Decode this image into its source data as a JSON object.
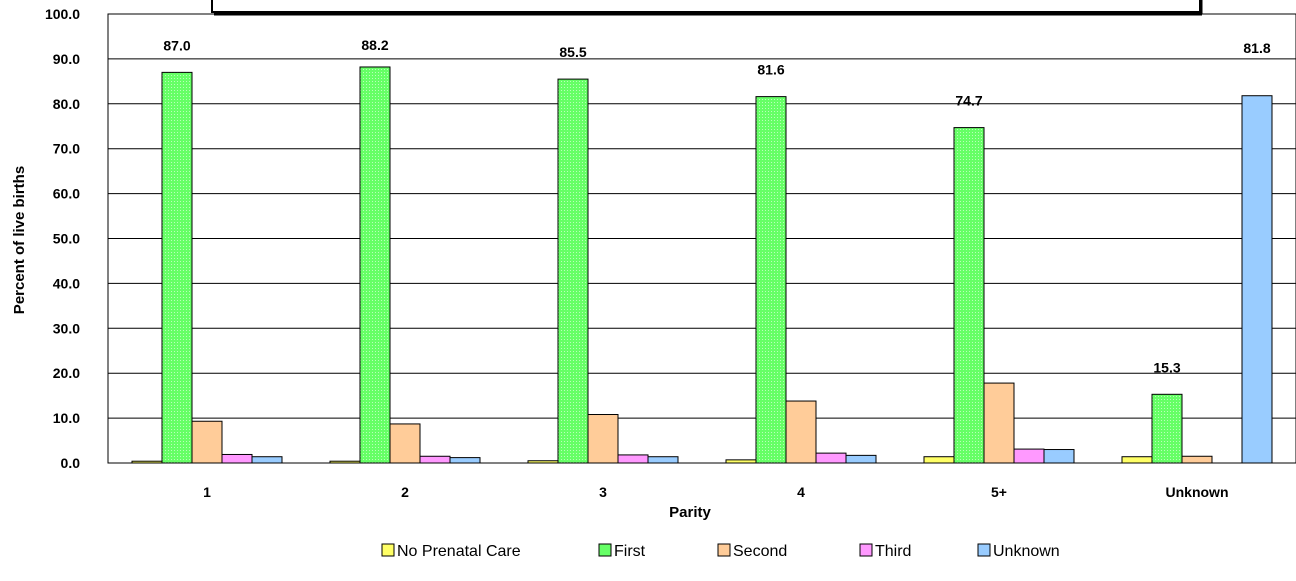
{
  "chart_data": {
    "type": "bar",
    "title": "",
    "xlabel": "Parity",
    "ylabel": "Percent of live births",
    "ylim": [
      0,
      100
    ],
    "ytick_step": 10,
    "ytick_labels": [
      "0.0",
      "10.0",
      "20.0",
      "30.0",
      "40.0",
      "50.0",
      "60.0",
      "70.0",
      "80.0",
      "90.0",
      "100.0"
    ],
    "grid": true,
    "legend_position": "bottom",
    "categories": [
      "1",
      "2",
      "3",
      "4",
      "5+",
      "Unknown"
    ],
    "series": [
      {
        "name": "No Prenatal Care",
        "color": "#ffff66",
        "values": [
          0.4,
          0.4,
          0.5,
          0.7,
          1.4,
          1.4
        ]
      },
      {
        "name": "First",
        "color": "#66ff66",
        "values": [
          87.0,
          88.2,
          85.5,
          81.6,
          74.7,
          15.3
        ]
      },
      {
        "name": "Second",
        "color": "#ffcc99",
        "values": [
          9.3,
          8.7,
          10.8,
          13.8,
          17.8,
          1.5
        ]
      },
      {
        "name": "Third",
        "color": "#ff99ff",
        "values": [
          1.9,
          1.5,
          1.8,
          2.2,
          3.1,
          0.0
        ]
      },
      {
        "name": "Unknown",
        "color": "#99ccff",
        "values": [
          1.4,
          1.2,
          1.4,
          1.7,
          3.0,
          81.8
        ]
      }
    ],
    "data_labels": [
      {
        "category": "1",
        "series": "First",
        "text": "87.0"
      },
      {
        "category": "2",
        "series": "First",
        "text": "88.2"
      },
      {
        "category": "3",
        "series": "First",
        "text": "85.5"
      },
      {
        "category": "4",
        "series": "First",
        "text": "81.6"
      },
      {
        "category": "5+",
        "series": "First",
        "text": "74.7"
      },
      {
        "category": "Unknown",
        "series": "First",
        "text": "15.3"
      },
      {
        "category": "Unknown",
        "series": "Unknown",
        "text": "81.8"
      }
    ]
  }
}
